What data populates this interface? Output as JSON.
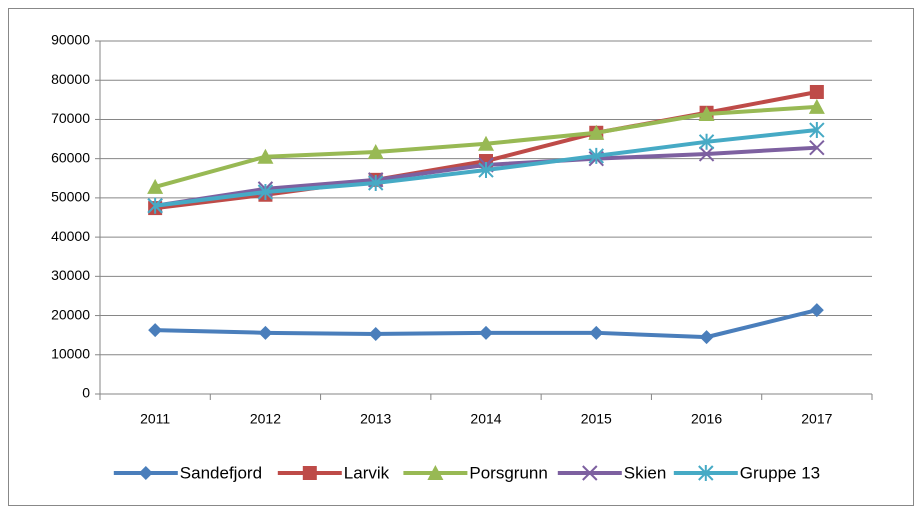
{
  "chart_data": {
    "type": "line",
    "categories": [
      "2011",
      "2012",
      "2013",
      "2014",
      "2015",
      "2016",
      "2017"
    ],
    "series": [
      {
        "name": "Sandefjord",
        "color": "#4a7ebb",
        "marker": "diamond",
        "values": [
          16300,
          15600,
          15300,
          15600,
          15600,
          14500,
          21400
        ]
      },
      {
        "name": "Larvik",
        "color": "#be4b48",
        "marker": "square",
        "values": [
          47400,
          50800,
          54600,
          59400,
          66600,
          71700,
          77000
        ]
      },
      {
        "name": "Porsgrunn",
        "color": "#98b954",
        "marker": "triangle",
        "values": [
          52800,
          60500,
          61700,
          63800,
          66600,
          71400,
          73200
        ]
      },
      {
        "name": "Skien",
        "color": "#7d60a0",
        "marker": "x",
        "values": [
          48000,
          52300,
          54600,
          58400,
          60000,
          61200,
          62800
        ]
      },
      {
        "name": "Gruppe 13",
        "color": "#46aac5",
        "marker": "asterisk",
        "values": [
          48000,
          51500,
          53800,
          57100,
          60700,
          64300,
          67300
        ]
      }
    ],
    "ylim": [
      0,
      90000
    ],
    "yticks": [
      0,
      10000,
      20000,
      30000,
      40000,
      50000,
      60000,
      70000,
      80000,
      90000
    ],
    "grid": true,
    "legend": "bottom"
  }
}
